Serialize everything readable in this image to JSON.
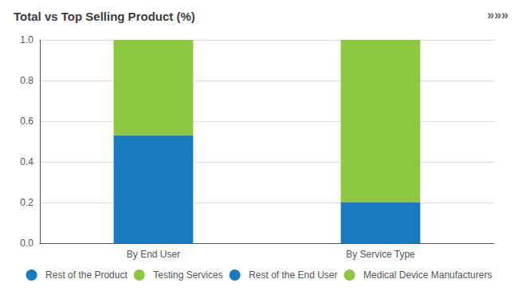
{
  "chart_data": {
    "type": "bar",
    "title": "Total vs Top Selling Product (%)",
    "annotations": [
      "»»»"
    ],
    "categories": [
      "By End User",
      "By Service Type"
    ],
    "series": [
      {
        "name": "Rest of the Product",
        "color": "#1a7abf",
        "values": [
          null,
          0.2
        ]
      },
      {
        "name": "Testing Services",
        "color": "#8dc63f",
        "values": [
          null,
          0.8
        ]
      },
      {
        "name": "Rest of the End User",
        "color": "#1a7abf",
        "values": [
          0.53,
          null
        ]
      },
      {
        "name": "Medical Device Manufacturers",
        "color": "#8dc63f",
        "values": [
          0.47,
          null
        ]
      }
    ],
    "stacked": true,
    "ylim": [
      0.0,
      1.0
    ],
    "yticks": [
      {
        "value": 0.0,
        "label": "0.0"
      },
      0.2,
      0.4,
      0.6,
      0.8,
      {
        "value": 1.0,
        "label": "1.0"
      }
    ],
    "grid": true,
    "legend": "bottom"
  }
}
